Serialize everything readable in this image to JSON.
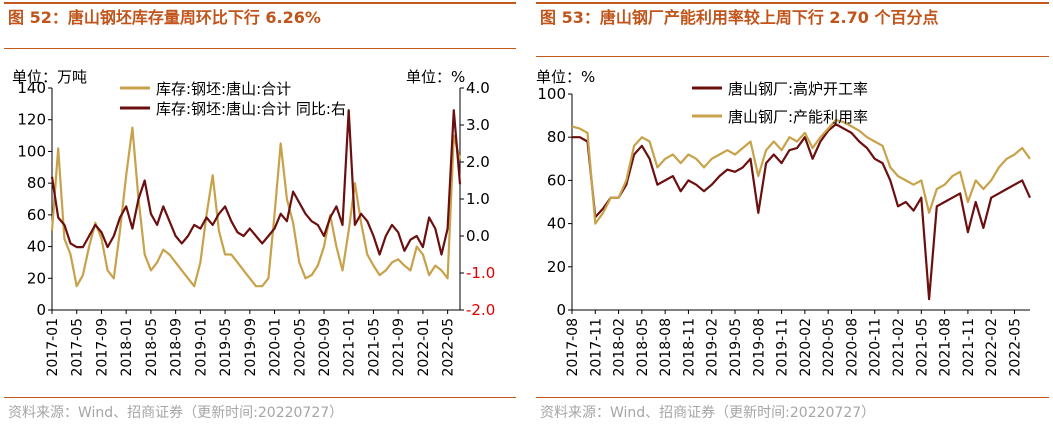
{
  "left": {
    "title": "图 52：唐山钢坯库存量周环比下行 6.26%",
    "source": "资料来源：Wind、招商证券（更新时间:20220727）",
    "chart_data": {
      "type": "line",
      "title": "图 52：唐山钢坯库存量周环比下行 6.26%",
      "y_left_unit": "单位：万吨",
      "y_right_unit": "单位：%",
      "ylim_left": [
        0,
        140
      ],
      "ylim_right": [
        -2.0,
        4.0
      ],
      "yticks_left": [
        "0",
        "20",
        "40",
        "60",
        "80",
        "100",
        "120",
        "140"
      ],
      "yticks_right": [
        "-2.0",
        "-1.0",
        "0.0",
        "1.0",
        "2.0",
        "3.0",
        "4.0"
      ],
      "xlim": [
        "2017-01",
        "2022-07"
      ],
      "xticks": [
        "2017-01",
        "2017-05",
        "2017-09",
        "2018-01",
        "2018-05",
        "2018-09",
        "2019-01",
        "2019-05",
        "2019-09",
        "2020-01",
        "2020-05",
        "2020-09",
        "2021-01",
        "2021-05",
        "2021-09",
        "2022-01",
        "2022-05"
      ],
      "legend_position": "top",
      "series": [
        {
          "name": "库存:钢坯:唐山:合计",
          "axis": "left",
          "color": "#c8a24a",
          "x": [
            "2017-01",
            "2017-02",
            "2017-03",
            "2017-04",
            "2017-05",
            "2017-06",
            "2017-07",
            "2017-08",
            "2017-09",
            "2017-10",
            "2017-11",
            "2017-12",
            "2018-01",
            "2018-02",
            "2018-03",
            "2018-04",
            "2018-05",
            "2018-06",
            "2018-07",
            "2018-08",
            "2018-09",
            "2018-10",
            "2018-11",
            "2018-12",
            "2019-01",
            "2019-02",
            "2019-03",
            "2019-04",
            "2019-05",
            "2019-06",
            "2019-07",
            "2019-08",
            "2019-09",
            "2019-10",
            "2019-11",
            "2019-12",
            "2020-01",
            "2020-02",
            "2020-03",
            "2020-04",
            "2020-05",
            "2020-06",
            "2020-07",
            "2020-08",
            "2020-09",
            "2020-10",
            "2020-11",
            "2020-12",
            "2021-01",
            "2021-02",
            "2021-03",
            "2021-04",
            "2021-05",
            "2021-06",
            "2021-07",
            "2021-08",
            "2021-09",
            "2021-10",
            "2021-11",
            "2021-12",
            "2022-01",
            "2022-02",
            "2022-03",
            "2022-04",
            "2022-05",
            "2022-06",
            "2022-07"
          ],
          "values": [
            50,
            102,
            45,
            35,
            15,
            22,
            40,
            55,
            45,
            25,
            20,
            50,
            85,
            115,
            70,
            35,
            25,
            30,
            38,
            35,
            30,
            25,
            20,
            15,
            30,
            60,
            85,
            50,
            35,
            35,
            30,
            25,
            20,
            15,
            15,
            20,
            60,
            105,
            70,
            55,
            30,
            20,
            22,
            28,
            40,
            60,
            40,
            25,
            50,
            80,
            55,
            35,
            28,
            22,
            25,
            30,
            32,
            28,
            25,
            40,
            35,
            22,
            28,
            25,
            20,
            110,
            95
          ]
        },
        {
          "name": "库存:钢坯:唐山:合计 同比:右",
          "axis": "right",
          "color": "#6b0f0f",
          "x": [
            "2017-01",
            "2017-02",
            "2017-03",
            "2017-04",
            "2017-05",
            "2017-06",
            "2017-07",
            "2017-08",
            "2017-09",
            "2017-10",
            "2017-11",
            "2017-12",
            "2018-01",
            "2018-02",
            "2018-03",
            "2018-04",
            "2018-05",
            "2018-06",
            "2018-07",
            "2018-08",
            "2018-09",
            "2018-10",
            "2018-11",
            "2018-12",
            "2019-01",
            "2019-02",
            "2019-03",
            "2019-04",
            "2019-05",
            "2019-06",
            "2019-07",
            "2019-08",
            "2019-09",
            "2019-10",
            "2019-11",
            "2019-12",
            "2020-01",
            "2020-02",
            "2020-03",
            "2020-04",
            "2020-05",
            "2020-06",
            "2020-07",
            "2020-08",
            "2020-09",
            "2020-10",
            "2020-11",
            "2020-12",
            "2021-01",
            "2021-02",
            "2021-03",
            "2021-04",
            "2021-05",
            "2021-06",
            "2021-07",
            "2021-08",
            "2021-09",
            "2021-10",
            "2021-11",
            "2021-12",
            "2022-01",
            "2022-02",
            "2022-03",
            "2022-04",
            "2022-05",
            "2022-06",
            "2022-07"
          ],
          "values": [
            1.6,
            0.5,
            0.3,
            -0.2,
            -0.3,
            -0.3,
            0.0,
            0.3,
            0.1,
            -0.3,
            0.0,
            0.5,
            0.8,
            0.2,
            1.0,
            1.5,
            0.6,
            0.3,
            0.8,
            0.4,
            0.0,
            -0.2,
            0.0,
            0.3,
            0.2,
            0.5,
            0.3,
            0.6,
            0.8,
            0.4,
            0.1,
            0.0,
            0.2,
            0.0,
            -0.2,
            0.0,
            0.2,
            0.6,
            0.4,
            1.2,
            0.9,
            0.6,
            0.4,
            0.3,
            0.0,
            0.5,
            0.8,
            0.3,
            3.4,
            0.3,
            0.6,
            0.4,
            0.0,
            -0.5,
            0.0,
            0.3,
            0.1,
            -0.4,
            -0.1,
            0.0,
            -0.3,
            0.5,
            0.2,
            -0.5,
            0.2,
            3.4,
            1.4
          ]
        }
      ]
    }
  },
  "right": {
    "title": "图 53：唐山钢厂产能利用率较上周下行 2.70 个百分点",
    "source": "资料来源：Wind、招商证券（更新时间:20220727）",
    "chart_data": {
      "type": "line",
      "title": "图 53：唐山钢厂产能利用率较上周下行 2.70 个百分点",
      "y_left_unit": "单位：%",
      "ylim_left": [
        0,
        100
      ],
      "yticks_left": [
        "0",
        "20",
        "40",
        "60",
        "80",
        "100"
      ],
      "xlim": [
        "2017-08",
        "2022-07"
      ],
      "xticks": [
        "2017-08",
        "2017-11",
        "2018-02",
        "2018-05",
        "2018-08",
        "2018-11",
        "2019-02",
        "2019-05",
        "2019-08",
        "2019-11",
        "2020-02",
        "2020-05",
        "2020-08",
        "2020-11",
        "2021-02",
        "2021-05",
        "2021-08",
        "2021-11",
        "2022-02",
        "2022-05"
      ],
      "legend_position": "top",
      "series": [
        {
          "name": "唐山钢厂:高炉开工率",
          "axis": "left",
          "color": "#6b0f0f",
          "x": [
            "2017-08",
            "2017-09",
            "2017-10",
            "2017-11",
            "2017-12",
            "2018-01",
            "2018-02",
            "2018-03",
            "2018-04",
            "2018-05",
            "2018-06",
            "2018-07",
            "2018-08",
            "2018-09",
            "2018-10",
            "2018-11",
            "2018-12",
            "2019-01",
            "2019-02",
            "2019-03",
            "2019-04",
            "2019-05",
            "2019-06",
            "2019-07",
            "2019-08",
            "2019-09",
            "2019-10",
            "2019-11",
            "2019-12",
            "2020-01",
            "2020-02",
            "2020-03",
            "2020-04",
            "2020-05",
            "2020-06",
            "2020-07",
            "2020-08",
            "2020-09",
            "2020-10",
            "2020-11",
            "2020-12",
            "2021-01",
            "2021-02",
            "2021-03",
            "2021-04",
            "2021-05",
            "2021-06",
            "2021-07",
            "2021-08",
            "2021-09",
            "2021-10",
            "2021-11",
            "2021-12",
            "2022-01",
            "2022-02",
            "2022-03",
            "2022-04",
            "2022-05",
            "2022-06",
            "2022-07"
          ],
          "values": [
            80,
            80,
            78,
            43,
            47,
            52,
            52,
            58,
            72,
            76,
            70,
            58,
            60,
            62,
            55,
            60,
            58,
            55,
            58,
            62,
            65,
            64,
            66,
            70,
            45,
            68,
            72,
            68,
            74,
            75,
            80,
            70,
            78,
            83,
            86,
            84,
            82,
            78,
            75,
            70,
            68,
            60,
            48,
            50,
            46,
            52,
            5,
            48,
            50,
            52,
            54,
            36,
            50,
            38,
            52,
            54,
            56,
            58,
            60,
            52
          ]
        },
        {
          "name": "唐山钢厂:产能利用率",
          "axis": "left",
          "color": "#c8a24a",
          "x": [
            "2017-08",
            "2017-09",
            "2017-10",
            "2017-11",
            "2017-12",
            "2018-01",
            "2018-02",
            "2018-03",
            "2018-04",
            "2018-05",
            "2018-06",
            "2018-07",
            "2018-08",
            "2018-09",
            "2018-10",
            "2018-11",
            "2018-12",
            "2019-01",
            "2019-02",
            "2019-03",
            "2019-04",
            "2019-05",
            "2019-06",
            "2019-07",
            "2019-08",
            "2019-09",
            "2019-10",
            "2019-11",
            "2019-12",
            "2020-01",
            "2020-02",
            "2020-03",
            "2020-04",
            "2020-05",
            "2020-06",
            "2020-07",
            "2020-08",
            "2020-09",
            "2020-10",
            "2020-11",
            "2020-12",
            "2021-01",
            "2021-02",
            "2021-03",
            "2021-04",
            "2021-05",
            "2021-06",
            "2021-07",
            "2021-08",
            "2021-09",
            "2021-10",
            "2021-11",
            "2021-12",
            "2022-01",
            "2022-02",
            "2022-03",
            "2022-04",
            "2022-05",
            "2022-06",
            "2022-07"
          ],
          "values": [
            85,
            84,
            82,
            40,
            45,
            52,
            52,
            60,
            76,
            80,
            78,
            66,
            70,
            72,
            68,
            72,
            70,
            66,
            70,
            72,
            74,
            72,
            75,
            78,
            62,
            74,
            78,
            74,
            80,
            78,
            82,
            75,
            80,
            84,
            88,
            87,
            85,
            83,
            80,
            78,
            76,
            66,
            62,
            60,
            58,
            60,
            45,
            56,
            58,
            62,
            64,
            50,
            60,
            56,
            60,
            66,
            70,
            72,
            75,
            70
          ]
        }
      ]
    }
  }
}
